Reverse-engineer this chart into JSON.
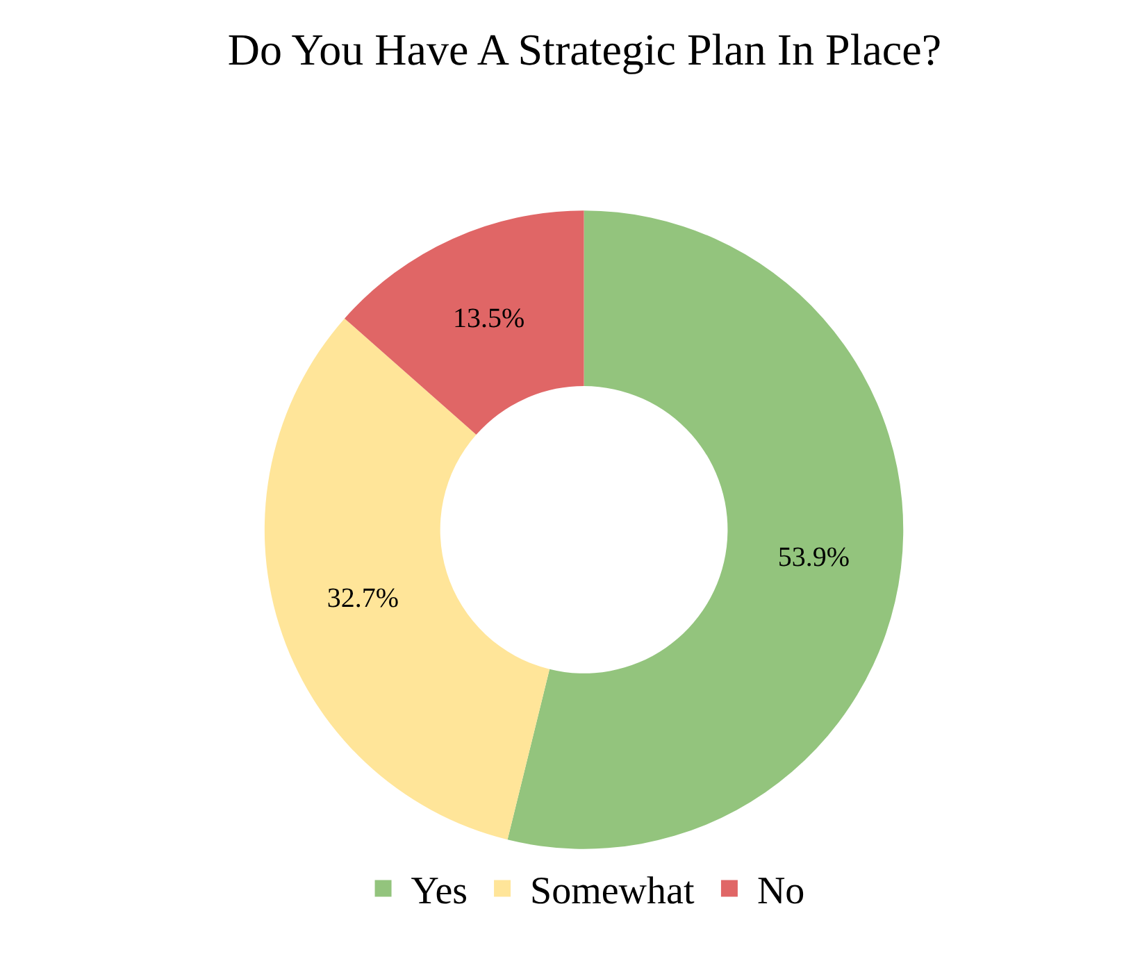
{
  "chart_data": {
    "type": "donut",
    "title": "Do You Have A Strategic Plan In Place?",
    "categories": [
      "Yes",
      "Somewhat",
      "No"
    ],
    "values": [
      53.9,
      32.7,
      13.5
    ],
    "value_labels": [
      "53.9%",
      "32.7%",
      "13.5%"
    ],
    "colors": [
      "#93c47d",
      "#ffe599",
      "#e06666"
    ],
    "legend": "bottom"
  }
}
